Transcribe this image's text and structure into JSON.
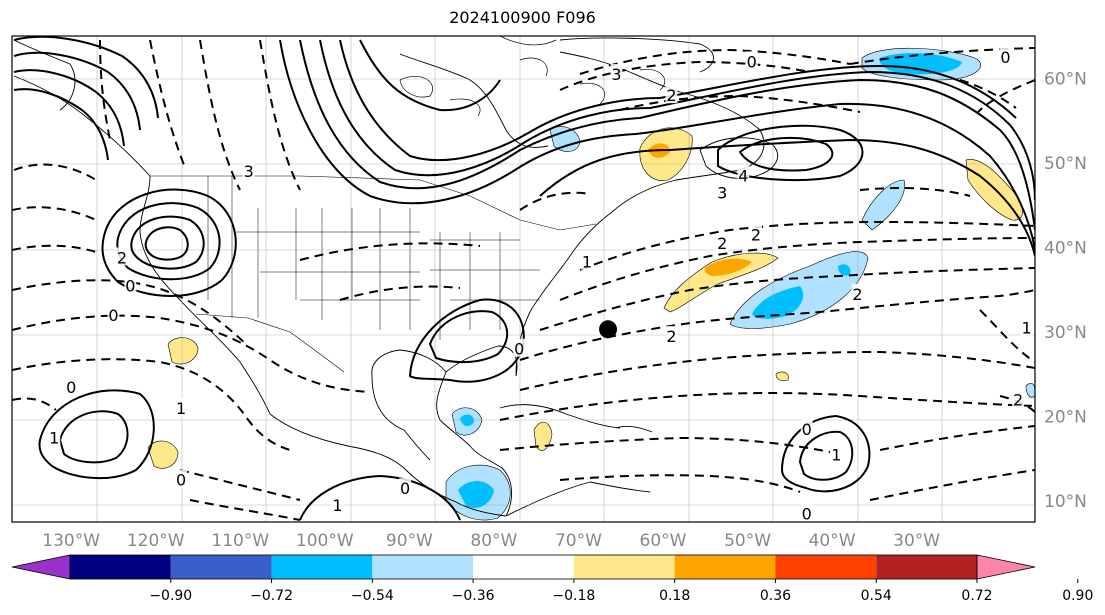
{
  "title": "2024100900 F096",
  "map": {
    "lon_range": [
      -137,
      -16
    ],
    "lat_range": [
      7.5,
      65
    ],
    "lon_ticks": [
      -130,
      -120,
      -110,
      -100,
      -90,
      -80,
      -70,
      -60,
      -50,
      -40,
      -30
    ],
    "lon_labels": [
      "130°W",
      "120°W",
      "110°W",
      "100°W",
      "90°W",
      "80°W",
      "70°W",
      "60°W",
      "50°W",
      "40°W",
      "30°W"
    ],
    "lat_ticks": [
      10,
      20,
      30,
      40,
      50,
      60
    ],
    "lat_labels": [
      "10°N",
      "20°N",
      "30°N",
      "40°N",
      "50°N",
      "60°N"
    ],
    "grid": true,
    "storm_marker": {
      "lon": -66.5,
      "lat": 30.3
    }
  },
  "contour_labels": [
    {
      "text": "0",
      "lon": -77,
      "lat": 28
    },
    {
      "text": "1",
      "lon": -69,
      "lat": 38.3
    },
    {
      "text": "2",
      "lon": -59,
      "lat": 29.5
    },
    {
      "text": "2",
      "lon": -53,
      "lat": 40.5
    },
    {
      "text": "2",
      "lon": -49,
      "lat": 41.5
    },
    {
      "text": "2",
      "lon": -37,
      "lat": 34.5
    },
    {
      "text": "3",
      "lon": -109,
      "lat": 49
    },
    {
      "text": "3",
      "lon": -53,
      "lat": 46.5
    },
    {
      "text": "4",
      "lon": -50.5,
      "lat": 48.5
    },
    {
      "text": "0",
      "lon": -123,
      "lat": 35.5
    },
    {
      "text": "0",
      "lon": -125,
      "lat": 32
    },
    {
      "text": "2",
      "lon": -124,
      "lat": 38.8
    },
    {
      "text": "0",
      "lon": -130,
      "lat": 23.5
    },
    {
      "text": "1",
      "lon": -132,
      "lat": 17.5
    },
    {
      "text": "0",
      "lon": -117,
      "lat": 12.5
    },
    {
      "text": "1",
      "lon": -117,
      "lat": 21
    },
    {
      "text": "0",
      "lon": -43,
      "lat": 18.5
    },
    {
      "text": "1",
      "lon": -39.5,
      "lat": 15.5
    },
    {
      "text": "0",
      "lon": -43,
      "lat": 8.5
    },
    {
      "text": "1",
      "lon": -98.5,
      "lat": 9.5
    },
    {
      "text": "0",
      "lon": -90.5,
      "lat": 11.5
    },
    {
      "text": "0",
      "lon": -49.5,
      "lat": 62
    },
    {
      "text": "2",
      "lon": -59,
      "lat": 58
    },
    {
      "text": "3",
      "lon": -65.5,
      "lat": 60.5
    },
    {
      "text": "0",
      "lon": -19.5,
      "lat": 62.5
    },
    {
      "text": "1",
      "lon": -17,
      "lat": 30.5
    },
    {
      "text": "2",
      "lon": -18,
      "lat": 22
    }
  ],
  "colorbar": {
    "boundaries": [
      "−0.90",
      "−0.72",
      "−0.54",
      "−0.36",
      "−0.18",
      "0.18",
      "0.36",
      "0.54",
      "0.72",
      "0.90"
    ],
    "colors": [
      "#9932cc",
      "#000080",
      "#3a5fcd",
      "#00bfff",
      "#b0e2ff",
      "#ffffff",
      "#ffe88a",
      "#ffa500",
      "#ff4000",
      "#b22222",
      "#ff85a8"
    ],
    "extend": "both"
  }
}
